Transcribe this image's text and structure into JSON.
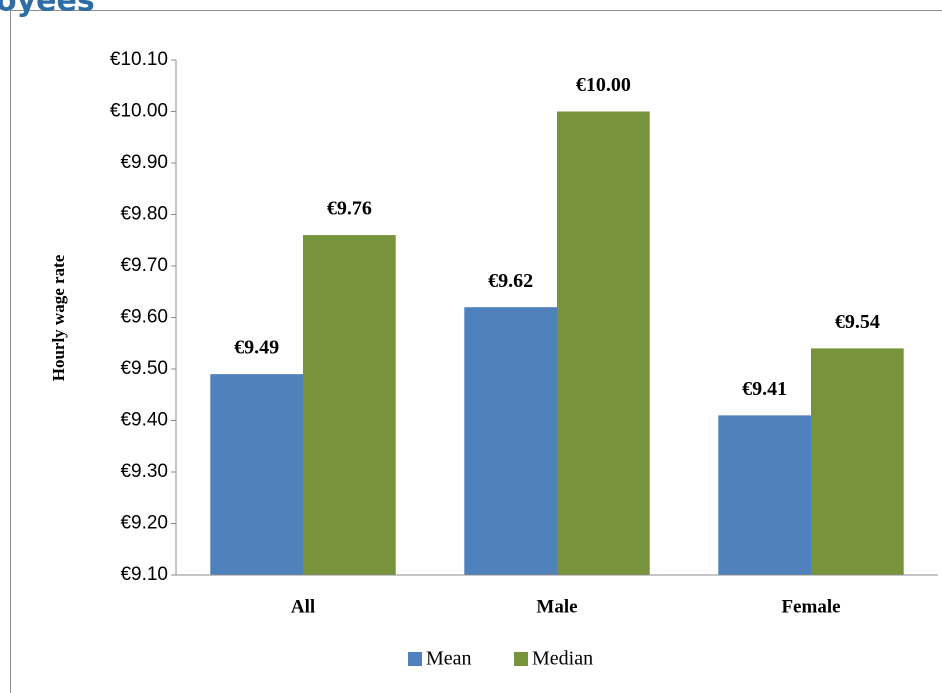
{
  "page_heading": "oyees",
  "chart_data": {
    "type": "bar",
    "y_axis_label": "Hourly wage rate",
    "categories": [
      "All",
      "Male",
      "Female"
    ],
    "series": [
      {
        "name": "Mean",
        "color": "#4f81bd",
        "values": [
          9.49,
          9.62,
          9.41
        ],
        "value_labels": [
          "€9.49",
          "€9.62",
          "€9.41"
        ]
      },
      {
        "name": "Median",
        "color": "#77933c",
        "values": [
          9.76,
          10.0,
          9.54
        ],
        "value_labels": [
          "€9.76",
          "€10.00",
          "€9.54"
        ]
      }
    ],
    "ylim": [
      9.1,
      10.1
    ],
    "yticks": [
      {
        "value": 9.1,
        "label": "€9.10"
      },
      {
        "value": 9.2,
        "label": "€9.20"
      },
      {
        "value": 9.3,
        "label": "€9.30"
      },
      {
        "value": 9.4,
        "label": "€9.40"
      },
      {
        "value": 9.5,
        "label": "€9.50"
      },
      {
        "value": 9.6,
        "label": "€9.60"
      },
      {
        "value": 9.7,
        "label": "€9.70"
      },
      {
        "value": 9.8,
        "label": "€9.80"
      },
      {
        "value": 9.9,
        "label": "€9.90"
      },
      {
        "value": 10.0,
        "label": "€10.00"
      },
      {
        "value": 10.1,
        "label": "€10.10"
      }
    ],
    "grid": false,
    "legend": "bottom"
  }
}
